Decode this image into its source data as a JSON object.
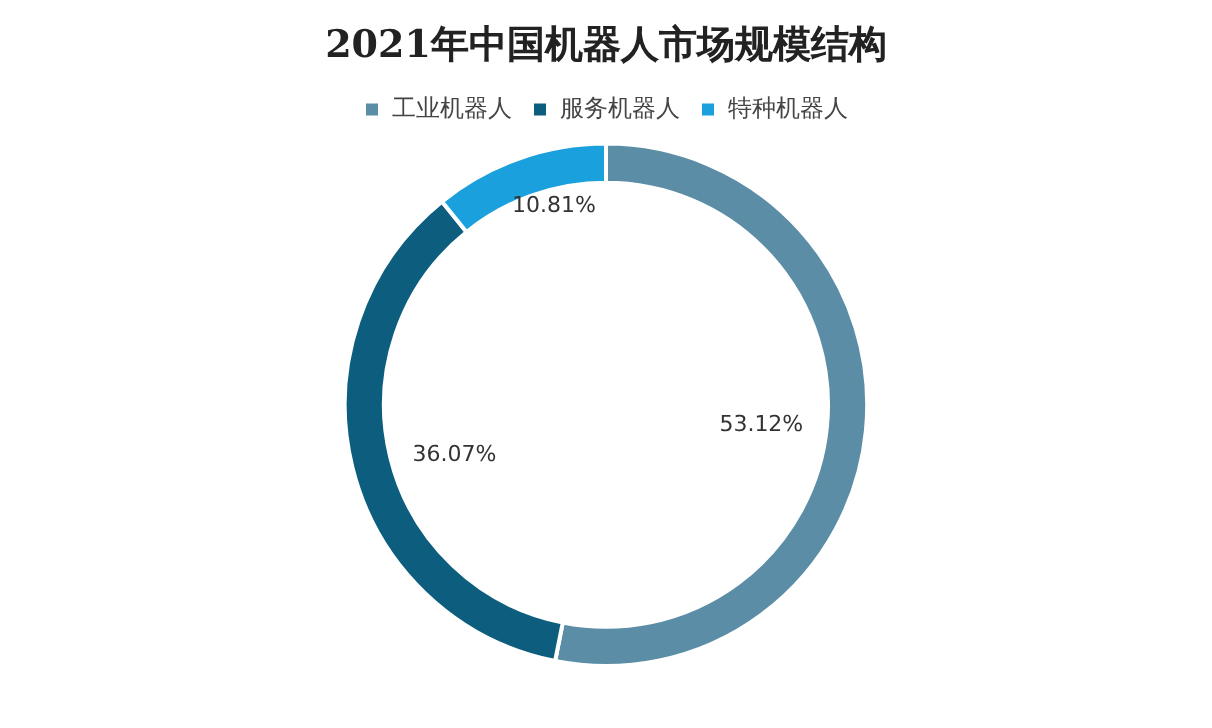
{
  "chart_data": {
    "type": "donut",
    "title": "2021年中国机器人市场规模结构",
    "categories": [
      "工业机器人",
      "服务机器人",
      "特种机器人"
    ],
    "values": [
      53.12,
      36.07,
      10.81
    ],
    "colors": [
      "#5b8ea6",
      "#0d5d7e",
      "#1aa1dd"
    ],
    "value_labels": [
      "53.12%",
      "36.07%",
      "10.81%"
    ],
    "legend": "top"
  }
}
